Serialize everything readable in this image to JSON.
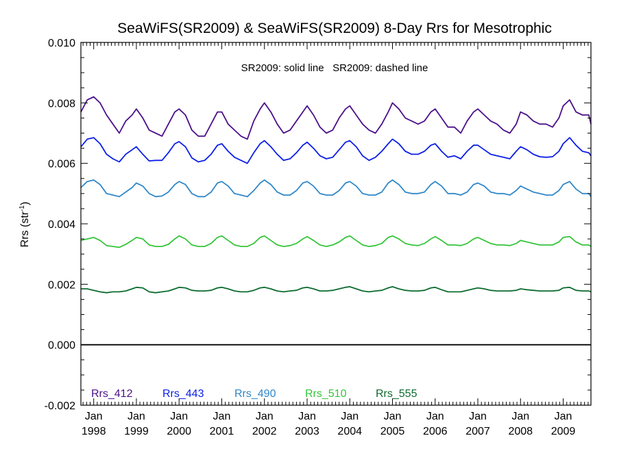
{
  "chart_data": {
    "type": "line",
    "title": "SeaWiFS(SR2009) & SeaWiFS(SR2009) 8-Day Rrs for Mesotrophic",
    "ylabel": "Rrs (str",
    "ylabel_sup": "-1",
    "ylabel_suffix": ")",
    "annotation": "SR2009: solid line   SR2009: dashed line",
    "ylim": [
      -0.002,
      0.01
    ],
    "yticks": [
      "-0.002",
      "0.000",
      "0.002",
      "0.004",
      "0.006",
      "0.008",
      "0.010"
    ],
    "yminor_step": 0.0005,
    "xlim": [
      1997.7,
      2009.65
    ],
    "xticks": [
      {
        "month": "Jan",
        "year": "1998"
      },
      {
        "month": "Jan",
        "year": "1999"
      },
      {
        "month": "Jan",
        "year": "2000"
      },
      {
        "month": "Jan",
        "year": "2001"
      },
      {
        "month": "Jan",
        "year": "2002"
      },
      {
        "month": "Jan",
        "year": "2003"
      },
      {
        "month": "Jan",
        "year": "2004"
      },
      {
        "month": "Jan",
        "year": "2005"
      },
      {
        "month": "Jan",
        "year": "2006"
      },
      {
        "month": "Jan",
        "year": "2007"
      },
      {
        "month": "Jan",
        "year": "2008"
      },
      {
        "month": "Jan",
        "year": "2009"
      }
    ],
    "zero_line": true,
    "grid": false,
    "legend_position": "bottom-left",
    "series": [
      {
        "name": "Rrs_412",
        "color": "#4b0f8a",
        "x": [
          1997.7,
          1997.85,
          1998.0,
          1998.15,
          1998.3,
          1998.45,
          1998.6,
          1998.75,
          1998.9,
          1999.0,
          1999.15,
          1999.3,
          1999.45,
          1999.6,
          1999.75,
          1999.9,
          2000.0,
          2000.15,
          2000.3,
          2000.45,
          2000.6,
          2000.75,
          2000.9,
          2001.0,
          2001.15,
          2001.3,
          2001.45,
          2001.6,
          2001.75,
          2001.9,
          2002.0,
          2002.15,
          2002.3,
          2002.45,
          2002.6,
          2002.75,
          2002.9,
          2003.0,
          2003.15,
          2003.3,
          2003.45,
          2003.6,
          2003.75,
          2003.9,
          2004.0,
          2004.15,
          2004.3,
          2004.45,
          2004.6,
          2004.75,
          2004.9,
          2005.0,
          2005.15,
          2005.3,
          2005.45,
          2005.6,
          2005.75,
          2005.9,
          2006.0,
          2006.15,
          2006.3,
          2006.45,
          2006.6,
          2006.75,
          2006.9,
          2007.0,
          2007.15,
          2007.3,
          2007.45,
          2007.6,
          2007.75,
          2007.9,
          2008.0,
          2008.15,
          2008.3,
          2008.45,
          2008.6,
          2008.75,
          2008.9,
          2009.0,
          2009.15,
          2009.3,
          2009.45,
          2009.6,
          2009.65
        ],
        "y": [
          0.0077,
          0.0081,
          0.0082,
          0.008,
          0.0076,
          0.0073,
          0.007,
          0.0074,
          0.0076,
          0.0078,
          0.0075,
          0.0071,
          0.007,
          0.0069,
          0.0073,
          0.0077,
          0.0078,
          0.0076,
          0.0071,
          0.0069,
          0.0069,
          0.0073,
          0.0077,
          0.0077,
          0.0073,
          0.0071,
          0.0069,
          0.0068,
          0.0074,
          0.0078,
          0.008,
          0.0077,
          0.0073,
          0.007,
          0.0071,
          0.0074,
          0.0077,
          0.0079,
          0.0076,
          0.0072,
          0.007,
          0.0071,
          0.0075,
          0.0078,
          0.0079,
          0.0076,
          0.0073,
          0.0071,
          0.007,
          0.0073,
          0.0077,
          0.008,
          0.0078,
          0.0075,
          0.0074,
          0.0073,
          0.0074,
          0.0077,
          0.0078,
          0.0075,
          0.0072,
          0.0072,
          0.007,
          0.0074,
          0.0077,
          0.0078,
          0.0076,
          0.0074,
          0.0073,
          0.0071,
          0.007,
          0.0073,
          0.0077,
          0.0076,
          0.0074,
          0.0073,
          0.0073,
          0.0072,
          0.0075,
          0.0079,
          0.0081,
          0.0077,
          0.0076,
          0.0076,
          0.0073
        ]
      },
      {
        "name": "Rrs_443",
        "color": "#0a1ee6",
        "x": [
          1997.7,
          1997.85,
          1998.0,
          1998.15,
          1998.3,
          1998.45,
          1998.6,
          1998.75,
          1998.9,
          1999.0,
          1999.15,
          1999.3,
          1999.45,
          1999.6,
          1999.75,
          1999.9,
          2000.0,
          2000.15,
          2000.3,
          2000.45,
          2000.6,
          2000.75,
          2000.9,
          2001.0,
          2001.15,
          2001.3,
          2001.45,
          2001.6,
          2001.75,
          2001.9,
          2002.0,
          2002.15,
          2002.3,
          2002.45,
          2002.6,
          2002.75,
          2002.9,
          2003.0,
          2003.15,
          2003.3,
          2003.45,
          2003.6,
          2003.75,
          2003.9,
          2004.0,
          2004.15,
          2004.3,
          2004.45,
          2004.6,
          2004.75,
          2004.9,
          2005.0,
          2005.15,
          2005.3,
          2005.45,
          2005.6,
          2005.75,
          2005.9,
          2006.0,
          2006.15,
          2006.3,
          2006.45,
          2006.6,
          2006.75,
          2006.9,
          2007.0,
          2007.15,
          2007.3,
          2007.45,
          2007.6,
          2007.75,
          2007.9,
          2008.0,
          2008.15,
          2008.3,
          2008.45,
          2008.6,
          2008.75,
          2008.9,
          2009.0,
          2009.15,
          2009.3,
          2009.45,
          2009.6,
          2009.65
        ],
        "y": [
          0.00655,
          0.0068,
          0.00685,
          0.00665,
          0.0063,
          0.00615,
          0.00605,
          0.0063,
          0.00645,
          0.00655,
          0.0063,
          0.00608,
          0.0061,
          0.0061,
          0.00635,
          0.00665,
          0.00672,
          0.00655,
          0.00618,
          0.00605,
          0.0061,
          0.0063,
          0.0066,
          0.00665,
          0.0064,
          0.0062,
          0.0061,
          0.006,
          0.00635,
          0.00665,
          0.00675,
          0.00655,
          0.0063,
          0.0061,
          0.00615,
          0.00635,
          0.0066,
          0.0067,
          0.0065,
          0.00625,
          0.00615,
          0.0062,
          0.00645,
          0.0067,
          0.00675,
          0.00655,
          0.00625,
          0.0061,
          0.0062,
          0.0064,
          0.00665,
          0.0068,
          0.00665,
          0.0064,
          0.0063,
          0.0063,
          0.0064,
          0.0066,
          0.00665,
          0.0064,
          0.0062,
          0.00625,
          0.00615,
          0.0064,
          0.0066,
          0.0066,
          0.00645,
          0.0063,
          0.00625,
          0.0062,
          0.00615,
          0.0064,
          0.00655,
          0.00645,
          0.0063,
          0.00622,
          0.0062,
          0.00622,
          0.0064,
          0.00665,
          0.00685,
          0.0066,
          0.0064,
          0.00635,
          0.00625
        ]
      },
      {
        "name": "Rrs_490",
        "color": "#2f87c8",
        "x": [
          1997.7,
          1997.85,
          1998.0,
          1998.15,
          1998.3,
          1998.45,
          1998.6,
          1998.75,
          1998.9,
          1999.0,
          1999.15,
          1999.3,
          1999.45,
          1999.6,
          1999.75,
          1999.9,
          2000.0,
          2000.15,
          2000.3,
          2000.45,
          2000.6,
          2000.75,
          2000.9,
          2001.0,
          2001.15,
          2001.3,
          2001.45,
          2001.6,
          2001.75,
          2001.9,
          2002.0,
          2002.15,
          2002.3,
          2002.45,
          2002.6,
          2002.75,
          2002.9,
          2003.0,
          2003.15,
          2003.3,
          2003.45,
          2003.6,
          2003.75,
          2003.9,
          2004.0,
          2004.15,
          2004.3,
          2004.45,
          2004.6,
          2004.75,
          2004.9,
          2005.0,
          2005.15,
          2005.3,
          2005.45,
          2005.6,
          2005.75,
          2005.9,
          2006.0,
          2006.15,
          2006.3,
          2006.45,
          2006.6,
          2006.75,
          2006.9,
          2007.0,
          2007.15,
          2007.3,
          2007.45,
          2007.6,
          2007.75,
          2007.9,
          2008.0,
          2008.15,
          2008.3,
          2008.45,
          2008.6,
          2008.75,
          2008.9,
          2009.0,
          2009.15,
          2009.3,
          2009.45,
          2009.6,
          2009.65
        ],
        "y": [
          0.0052,
          0.0054,
          0.00545,
          0.0053,
          0.005,
          0.00495,
          0.0049,
          0.00505,
          0.0052,
          0.00535,
          0.00525,
          0.005,
          0.0049,
          0.00492,
          0.00505,
          0.0053,
          0.0054,
          0.0053,
          0.005,
          0.0049,
          0.0049,
          0.00505,
          0.00535,
          0.0054,
          0.00525,
          0.005,
          0.00495,
          0.0049,
          0.0051,
          0.00535,
          0.00545,
          0.0053,
          0.00505,
          0.00495,
          0.00495,
          0.0051,
          0.00535,
          0.0054,
          0.00525,
          0.005,
          0.00495,
          0.00495,
          0.0051,
          0.00535,
          0.0054,
          0.00525,
          0.005,
          0.00495,
          0.00495,
          0.00505,
          0.00535,
          0.00545,
          0.0053,
          0.00505,
          0.005,
          0.005,
          0.00505,
          0.0053,
          0.0054,
          0.00525,
          0.005,
          0.005,
          0.00495,
          0.00505,
          0.0053,
          0.00535,
          0.00525,
          0.00505,
          0.005,
          0.005,
          0.00495,
          0.0051,
          0.00525,
          0.00515,
          0.00505,
          0.005,
          0.00495,
          0.00495,
          0.0051,
          0.0053,
          0.0054,
          0.00515,
          0.005,
          0.005,
          0.0049
        ]
      },
      {
        "name": "Rrs_510",
        "color": "#35c43a",
        "x": [
          1997.7,
          1997.85,
          1998.0,
          1998.15,
          1998.3,
          1998.45,
          1998.6,
          1998.75,
          1998.9,
          1999.0,
          1999.15,
          1999.3,
          1999.45,
          1999.6,
          1999.75,
          1999.9,
          2000.0,
          2000.15,
          2000.3,
          2000.45,
          2000.6,
          2000.75,
          2000.9,
          2001.0,
          2001.15,
          2001.3,
          2001.45,
          2001.6,
          2001.75,
          2001.9,
          2002.0,
          2002.15,
          2002.3,
          2002.45,
          2002.6,
          2002.75,
          2002.9,
          2003.0,
          2003.15,
          2003.3,
          2003.45,
          2003.6,
          2003.75,
          2003.9,
          2004.0,
          2004.15,
          2004.3,
          2004.45,
          2004.6,
          2004.75,
          2004.9,
          2005.0,
          2005.15,
          2005.3,
          2005.45,
          2005.6,
          2005.75,
          2005.9,
          2006.0,
          2006.15,
          2006.3,
          2006.45,
          2006.6,
          2006.75,
          2006.9,
          2007.0,
          2007.15,
          2007.3,
          2007.45,
          2007.6,
          2007.75,
          2007.9,
          2008.0,
          2008.15,
          2008.3,
          2008.45,
          2008.6,
          2008.75,
          2008.9,
          2009.0,
          2009.15,
          2009.3,
          2009.45,
          2009.6,
          2009.65
        ],
        "y": [
          0.00345,
          0.0035,
          0.00355,
          0.00345,
          0.00328,
          0.00325,
          0.00322,
          0.00332,
          0.00345,
          0.00355,
          0.0035,
          0.0033,
          0.00325,
          0.00325,
          0.00332,
          0.0035,
          0.0036,
          0.0035,
          0.0033,
          0.00325,
          0.00325,
          0.00335,
          0.00355,
          0.0036,
          0.00345,
          0.0033,
          0.00325,
          0.00325,
          0.00335,
          0.00355,
          0.0036,
          0.00345,
          0.0033,
          0.00325,
          0.00328,
          0.00335,
          0.0035,
          0.00358,
          0.00345,
          0.0033,
          0.00325,
          0.0033,
          0.0034,
          0.00355,
          0.0036,
          0.00345,
          0.0033,
          0.00325,
          0.00328,
          0.00335,
          0.00355,
          0.0036,
          0.0035,
          0.00335,
          0.0033,
          0.00328,
          0.00335,
          0.0035,
          0.00358,
          0.00345,
          0.0033,
          0.0033,
          0.00328,
          0.00335,
          0.0035,
          0.00355,
          0.00345,
          0.00335,
          0.0033,
          0.0033,
          0.00328,
          0.00335,
          0.00345,
          0.0034,
          0.00335,
          0.0033,
          0.0033,
          0.0033,
          0.0034,
          0.00355,
          0.00358,
          0.0034,
          0.0033,
          0.0033,
          0.00325
        ]
      },
      {
        "name": "Rrs_555",
        "color": "#0b6b2e",
        "x": [
          1997.7,
          1997.85,
          1998.0,
          1998.15,
          1998.3,
          1998.45,
          1998.6,
          1998.75,
          1998.9,
          1999.0,
          1999.15,
          1999.3,
          1999.45,
          1999.6,
          1999.75,
          1999.9,
          2000.0,
          2000.15,
          2000.3,
          2000.45,
          2000.6,
          2000.75,
          2000.9,
          2001.0,
          2001.15,
          2001.3,
          2001.45,
          2001.6,
          2001.75,
          2001.9,
          2002.0,
          2002.15,
          2002.3,
          2002.45,
          2002.6,
          2002.75,
          2002.9,
          2003.0,
          2003.15,
          2003.3,
          2003.45,
          2003.6,
          2003.75,
          2003.9,
          2004.0,
          2004.15,
          2004.3,
          2004.45,
          2004.6,
          2004.75,
          2004.9,
          2005.0,
          2005.15,
          2005.3,
          2005.45,
          2005.6,
          2005.75,
          2005.9,
          2006.0,
          2006.15,
          2006.3,
          2006.45,
          2006.6,
          2006.75,
          2006.9,
          2007.0,
          2007.15,
          2007.3,
          2007.45,
          2007.6,
          2007.75,
          2007.9,
          2008.0,
          2008.15,
          2008.3,
          2008.45,
          2008.6,
          2008.75,
          2008.9,
          2009.0,
          2009.15,
          2009.3,
          2009.45,
          2009.6,
          2009.65
        ],
        "y": [
          0.00185,
          0.00185,
          0.0018,
          0.00175,
          0.00172,
          0.00175,
          0.00175,
          0.00178,
          0.00185,
          0.0019,
          0.00188,
          0.00175,
          0.00172,
          0.00175,
          0.00178,
          0.00185,
          0.0019,
          0.00188,
          0.0018,
          0.00178,
          0.00178,
          0.0018,
          0.00188,
          0.0019,
          0.00185,
          0.00178,
          0.00175,
          0.00175,
          0.0018,
          0.00188,
          0.0019,
          0.00185,
          0.00178,
          0.00175,
          0.00178,
          0.0018,
          0.00188,
          0.0019,
          0.00185,
          0.00178,
          0.00178,
          0.0018,
          0.00185,
          0.0019,
          0.00192,
          0.00185,
          0.00178,
          0.00175,
          0.00178,
          0.0018,
          0.00188,
          0.00192,
          0.00185,
          0.0018,
          0.00178,
          0.00178,
          0.0018,
          0.00188,
          0.0019,
          0.00182,
          0.00175,
          0.00175,
          0.00175,
          0.0018,
          0.00185,
          0.00188,
          0.00185,
          0.0018,
          0.00178,
          0.00178,
          0.00178,
          0.0018,
          0.00185,
          0.00182,
          0.0018,
          0.00178,
          0.00178,
          0.00178,
          0.0018,
          0.00188,
          0.0019,
          0.0018,
          0.00178,
          0.00178,
          0.00175
        ]
      }
    ]
  }
}
